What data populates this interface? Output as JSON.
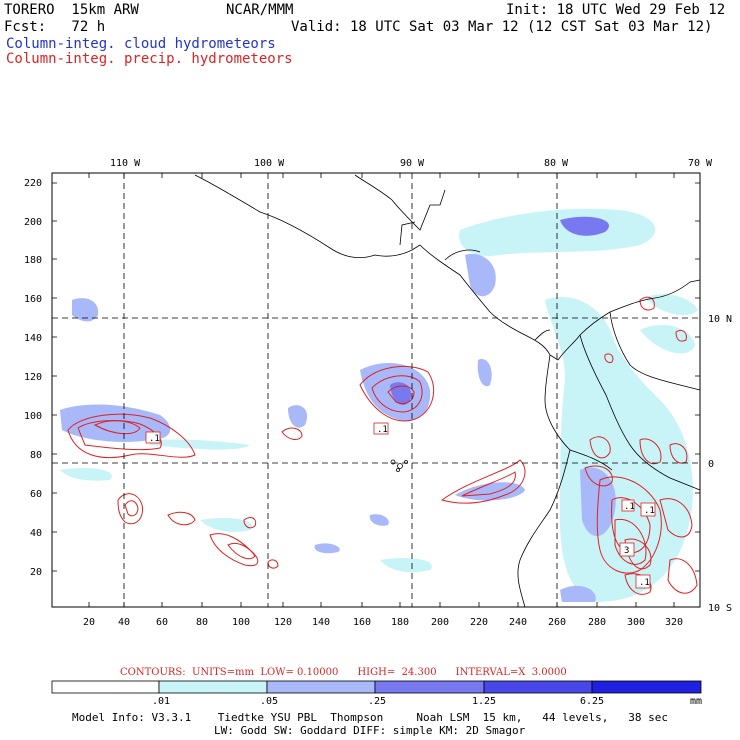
{
  "header": {
    "model": "TORERO  15km ARW",
    "org": "NCAR/MMM",
    "init": "Init: 18 UTC Wed 29 Feb 12",
    "fcst": "Fcst:   72 h",
    "valid": "Valid: 18 UTC Sat 03 Mar 12 (12 CST Sat 03 Mar 12)",
    "field1": "Column-integ. cloud hydrometeors",
    "field2": "Column-integ. precip. hydrometeors"
  },
  "axes": {
    "top_lon": [
      "110 W",
      "100 W",
      "90 W",
      "80 W",
      "70 W"
    ],
    "right_lat": [
      "10 N",
      "0",
      "10 S"
    ],
    "left_y": [
      "220",
      "200",
      "180",
      "160",
      "140",
      "120",
      "100",
      "80",
      "60",
      "40",
      "20"
    ],
    "bottom_x": [
      "20",
      "40",
      "60",
      "80",
      "100",
      "120",
      "140",
      "160",
      "180",
      "200",
      "220",
      "240",
      "260",
      "280",
      "300",
      "320"
    ]
  },
  "contour_labels": [
    ".1",
    ".1",
    ".1",
    ".1",
    "3",
    ".1"
  ],
  "contour_info": "CONTOURS:  UNITS=mm  LOW= 0.10000      HIGH=  24.300      INTERVAL=X  3.0000",
  "legend": {
    "values": [
      ".01",
      ".05",
      ".25",
      "1.25",
      "6.25"
    ],
    "units": "mm",
    "colors": [
      "#ffffff",
      "#c8f4f8",
      "#a8b8f8",
      "#7878f0",
      "#4848e8",
      "#2020e0"
    ]
  },
  "model_info": {
    "line1": "Model Info: V3.3.1    Tiedtke YSU PBL  Thompson     Noah LSM  15 km,   44 levels,   38 sec",
    "line2": "LW: Godd SW: Goddard DIFF: simple KM: 2D Smagor"
  }
}
